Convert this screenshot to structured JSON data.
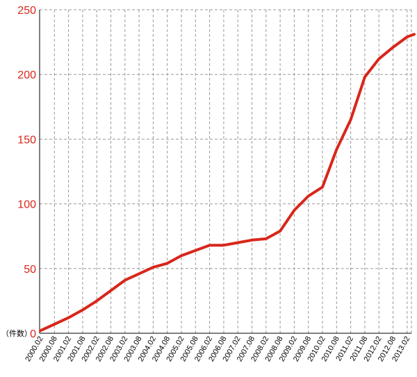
{
  "chart_data": {
    "type": "line",
    "unit_label": "（件数）",
    "ylim": [
      0,
      250
    ],
    "yticks": [
      0,
      50,
      100,
      150,
      200,
      250
    ],
    "xticks": [
      "2000.02",
      "2000.08",
      "2001.02",
      "2001.08",
      "2002.02",
      "2002.08",
      "2003.02",
      "2003.08",
      "2004.02",
      "2004.08",
      "2005.02",
      "2005.08",
      "2006.02",
      "2006.08",
      "2007.02",
      "2007.08",
      "2008.02",
      "2008.08",
      "2009.02",
      "2009.08",
      "2010.02",
      "2010.08",
      "2011.02",
      "2011.08",
      "2012.02",
      "2012.08",
      "2013.02"
    ],
    "grid": true,
    "series": [
      {
        "color": "#d8261a",
        "x": [
          "2000.02",
          "2000.08",
          "2001.02",
          "2001.08",
          "2002.02",
          "2002.08",
          "2003.02",
          "2003.08",
          "2004.02",
          "2004.08",
          "2005.02",
          "2005.08",
          "2006.02",
          "2006.08",
          "2007.02",
          "2007.08",
          "2008.02",
          "2008.08",
          "2009.02",
          "2009.08",
          "2010.02",
          "2010.08",
          "2011.02",
          "2011.08",
          "2012.02",
          "2012.08",
          "2013.02",
          "2013.05"
        ],
        "values": [
          2,
          7,
          12,
          18,
          25,
          33,
          41,
          46,
          51,
          54,
          60,
          64,
          68,
          68,
          70,
          72,
          73,
          79,
          95,
          106,
          113,
          142,
          165,
          198,
          212,
          221,
          229,
          231
        ]
      }
    ]
  }
}
